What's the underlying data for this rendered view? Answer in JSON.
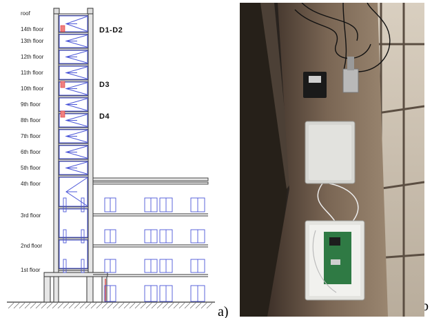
{
  "floors": {
    "roof": "roof",
    "f14": "14th floor",
    "f13": "13th floor",
    "f12": "12th floor",
    "f11": "11th floor",
    "f10": "10th floor",
    "f9": "9th floor",
    "f8": "8th floor",
    "f7": "7th floor",
    "f6": "6th floor",
    "f5": "5th floor",
    "f4": "4th floor",
    "f3": "3rd floor",
    "f2": "2nd floor",
    "f1": "1st floor"
  },
  "devices": {
    "d1d2": "D1-D2",
    "d3": "D3",
    "d4": "D4"
  },
  "panels": {
    "a": "a)",
    "b": "b"
  },
  "colors": {
    "structure": "#333333",
    "windows": "#4a55d8",
    "sensor": "#e0505a"
  }
}
